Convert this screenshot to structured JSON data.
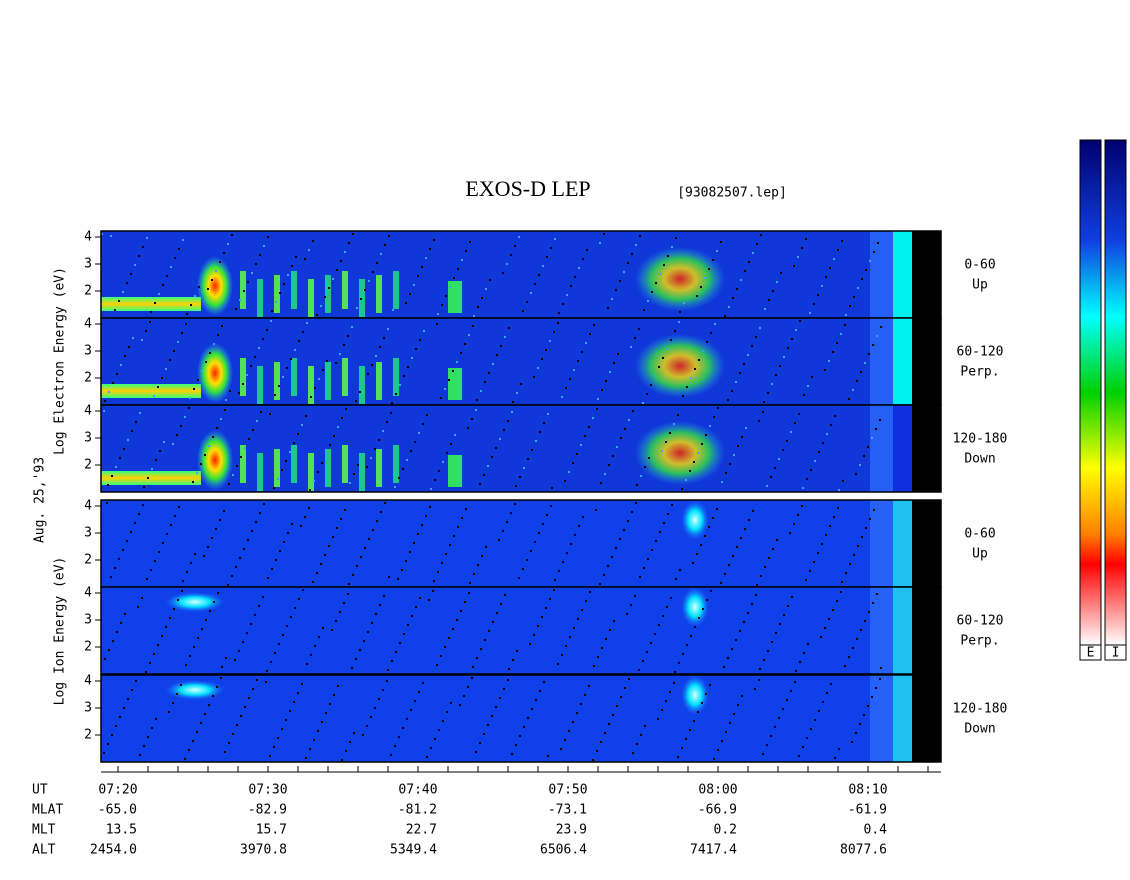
{
  "title": "EXOS-D LEP",
  "file": "[93082507.lep]",
  "date": "Aug. 25,'93",
  "electron_axis_label": "Log Electron Energy (eV)",
  "ion_axis_label": "Log Ion Energy (eV)",
  "y_ticks": [
    "4",
    "3",
    "2"
  ],
  "panels": [
    {
      "range": "0-60",
      "direction": "Up"
    },
    {
      "range": "60-120",
      "direction": "Perp."
    },
    {
      "range": "120-180",
      "direction": "Down"
    }
  ],
  "colorbar_labels": [
    "E",
    "I"
  ],
  "ephemeris": [
    {
      "label": "UT",
      "values": [
        "07:20",
        "07:30",
        "07:40",
        "07:50",
        "08:00",
        "08:10"
      ]
    },
    {
      "label": "MLAT",
      "values": [
        "-65.0",
        "-82.9",
        "-81.2",
        "-73.1",
        "-66.9",
        "-61.9"
      ]
    },
    {
      "label": "MLT",
      "values": [
        "13.5",
        "15.7",
        "22.7",
        "23.9",
        "0.2",
        "0.4"
      ]
    },
    {
      "label": "ALT",
      "values": [
        "2454.0",
        "3970.8",
        "5349.4",
        "6506.4",
        "7417.4",
        "8077.6"
      ]
    }
  ]
}
